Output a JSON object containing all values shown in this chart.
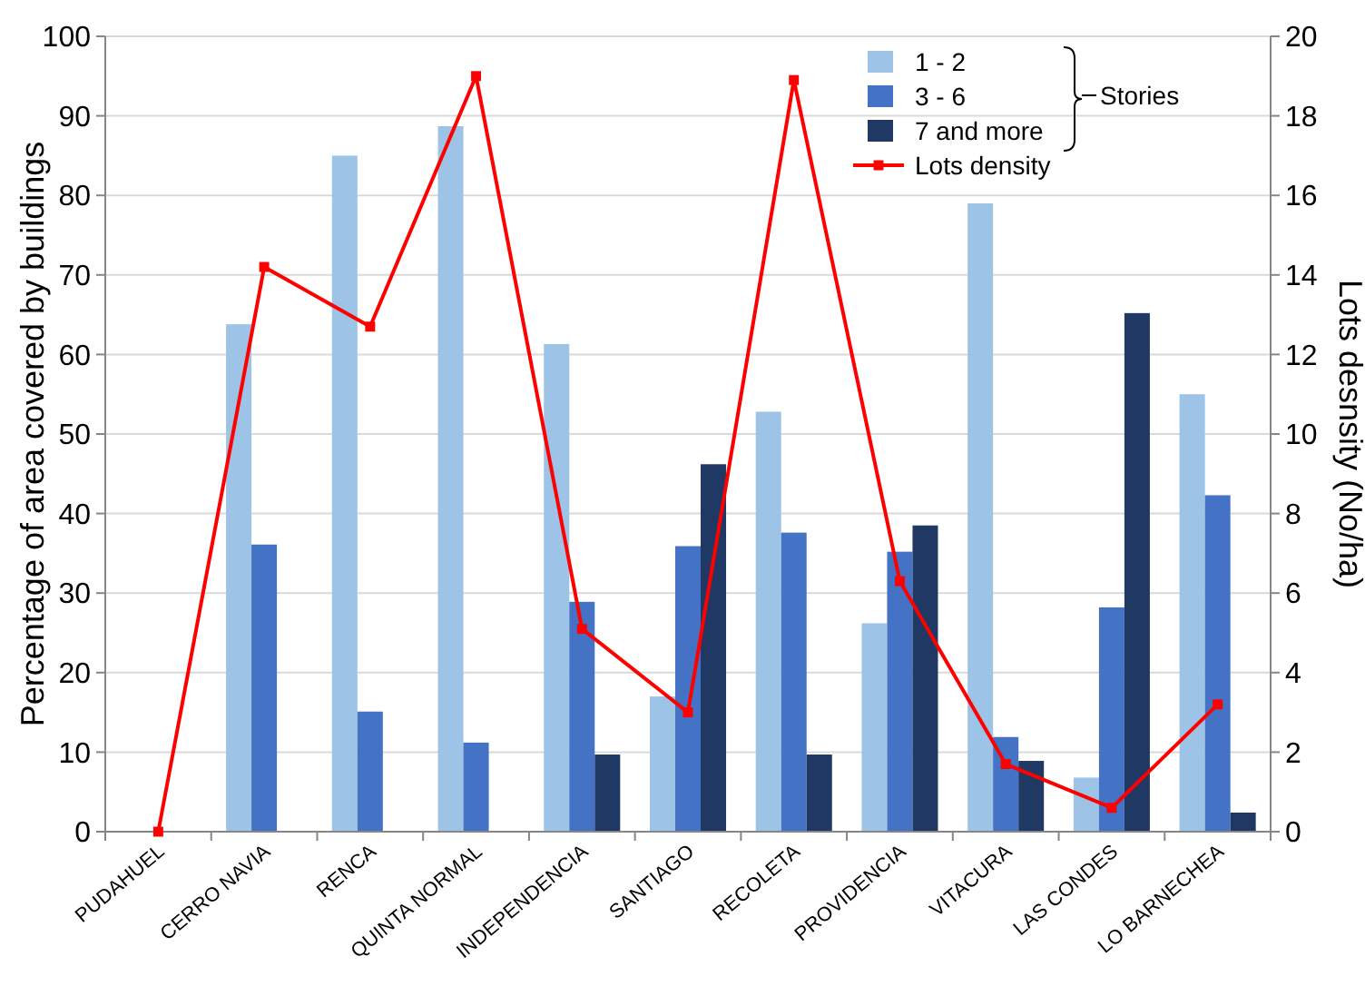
{
  "chart_data": {
    "type": "bar",
    "xlabel": null,
    "ylabel": "Percentage of area covered by buildings",
    "y2label": "Lots desnsity (No/ha)",
    "categories": [
      "PUDAHUEL",
      "CERRO NAVIA",
      "RENCA",
      "QUINTA NORMAL",
      "INDEPENDENCIA",
      "SANTIAGO",
      "RECOLETA",
      "PROVIDENCIA",
      "VITACURA",
      "LAS CONDES",
      "LO BARNECHEA"
    ],
    "series": [
      {
        "name": "1 - 2",
        "color": "#9dc3e6",
        "values": [
          null,
          63.8,
          85,
          88.7,
          61.3,
          17,
          52.8,
          26.2,
          79,
          6.8,
          55
        ]
      },
      {
        "name": "3 - 6",
        "color": "#4472c4",
        "values": [
          null,
          36.1,
          15.1,
          11.2,
          28.9,
          35.9,
          37.6,
          35.2,
          11.9,
          28.2,
          42.3
        ]
      },
      {
        "name": "7 and more",
        "color": "#1f3864",
        "values": [
          null,
          null,
          null,
          null,
          9.7,
          46.2,
          9.7,
          38.5,
          8.9,
          65.2,
          2.4
        ]
      },
      {
        "name": "Lots density",
        "color": "#ff0000",
        "type": "line",
        "axis": "y2",
        "marker": "square",
        "values": [
          0,
          14.2,
          12.7,
          19,
          5.1,
          3,
          18.9,
          6.3,
          1.7,
          0.6,
          3.2
        ]
      }
    ],
    "ylim": [
      0,
      100
    ],
    "yticks": [
      0,
      10,
      20,
      30,
      40,
      50,
      60,
      70,
      80,
      90,
      100
    ],
    "y2lim": [
      0,
      20
    ],
    "y2ticks": [
      0,
      2,
      4,
      6,
      8,
      10,
      12,
      14,
      16,
      18,
      20
    ],
    "grid": "y",
    "legend": "top right",
    "annotations": [
      "Stories"
    ]
  }
}
